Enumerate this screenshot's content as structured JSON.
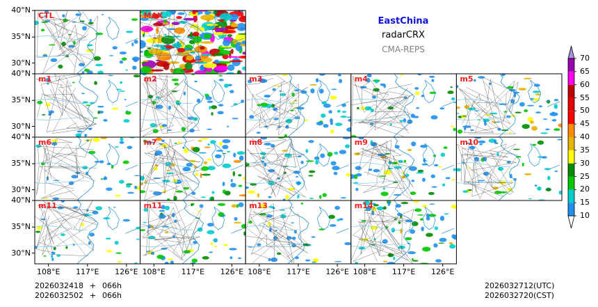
{
  "title": {
    "region": "EastChina",
    "variable": "radarCRX",
    "model": "CMA-REPS"
  },
  "panels": [
    {
      "label": "CTL",
      "density": 0.16
    },
    {
      "label": "MAX",
      "density": 0.9
    },
    {
      "label": "m1",
      "density": 0.08
    },
    {
      "label": "m2",
      "density": 0.14
    },
    {
      "label": "m3",
      "density": 0.22
    },
    {
      "label": "m4",
      "density": 0.12
    },
    {
      "label": "m5",
      "density": 0.24
    },
    {
      "label": "m6",
      "density": 0.12
    },
    {
      "label": "m7",
      "density": 0.3
    },
    {
      "label": "m8",
      "density": 0.18
    },
    {
      "label": "m9",
      "density": 0.2
    },
    {
      "label": "m10",
      "density": 0.16
    },
    {
      "label": "m11",
      "density": 0.1
    },
    {
      "label": "m11",
      "density": 0.2
    },
    {
      "label": "m13",
      "density": 0.12
    },
    {
      "label": "m14",
      "density": 0.26
    }
  ],
  "axes": {
    "lat_labels": [
      "40°N",
      "35°N",
      "30°N"
    ],
    "lon_labels": [
      "108°E",
      "117°E",
      "126°E"
    ]
  },
  "colorbar": {
    "levels": [
      "10",
      "15",
      "20",
      "25",
      "30",
      "35",
      "40",
      "45",
      "50",
      "55",
      "60",
      "65",
      "70"
    ],
    "colors": [
      "#1e90f0",
      "#00cccc",
      "#00c800",
      "#008c00",
      "#ffff00",
      "#e6b400",
      "#ff8c00",
      "#ff0000",
      "#e60000",
      "#c00000",
      "#ff00f0",
      "#9a00b4",
      "#a890e0"
    ]
  },
  "time": {
    "init_utc": "2026032418",
    "init_cst": "2026032502",
    "lead_1": "066h",
    "lead_2": "066h",
    "plus_1": "+",
    "plus_2": "+",
    "valid_utc": "2026032712(UTC)",
    "valid_cst": "2026032720(CST)"
  }
}
